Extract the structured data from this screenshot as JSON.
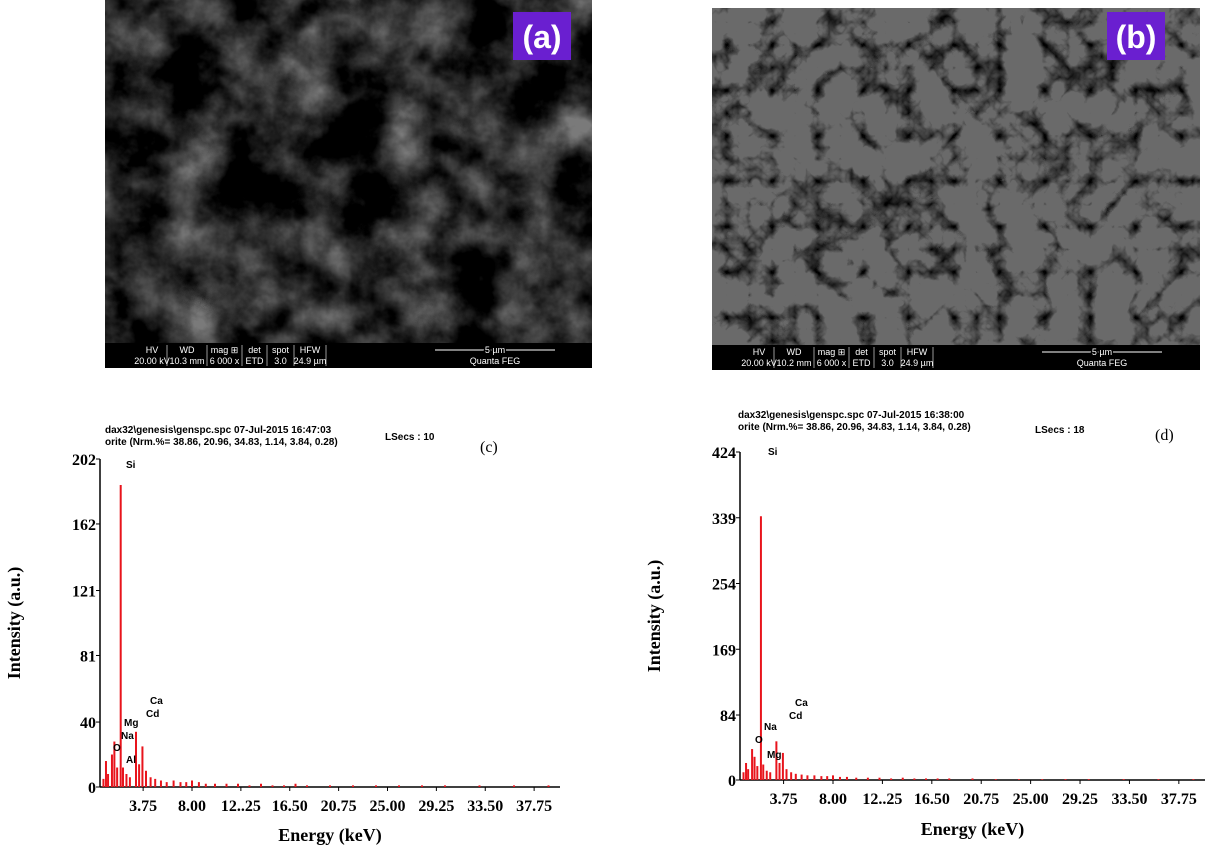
{
  "images": [
    {
      "label": "(a)",
      "info_headers": [
        "HV",
        "WD",
        "mag ⊞",
        "det",
        "spot",
        "HFW"
      ],
      "info_values": [
        "20.00 kV",
        "10.3 mm",
        "6 000 x",
        "ETD",
        "3.0",
        "24.9 µm"
      ],
      "scale": "5 µm",
      "instrument": "Quanta FEG"
    },
    {
      "label": "(b)",
      "info_headers": [
        "HV",
        "WD",
        "mag ⊞",
        "det",
        "spot",
        "HFW"
      ],
      "info_values": [
        "20.00 kV",
        "10.2 mm",
        "6 000 x",
        "ETD",
        "3.0",
        "24.9 µm"
      ],
      "scale": "5 µm",
      "instrument": "Quanta FEG"
    }
  ],
  "chart_data": [
    {
      "type": "spectrum",
      "label": "(c)",
      "header_lines": [
        "dax32\\genesis\\genspc.spc  07-Jul-2015 16:47:03",
        "orite (Nrm.%= 38.86, 20.96, 34.83, 1.14, 3.84, 0.28)"
      ],
      "live_time": "LSecs : 10",
      "x_label": "Energy (keV)",
      "y_label": "Intensity (a.u.)",
      "color": "#e8141c",
      "xlim": [
        0,
        40
      ],
      "ylim": [
        0,
        202
      ],
      "xticks": [
        3.75,
        {
          "value": 8,
          "label": "8.00"
        },
        {
          "value": 12.25,
          "label": "12..25"
        },
        {
          "value": 16.5,
          "label": "16.50"
        },
        20.75,
        {
          "value": 25,
          "label": "25.00"
        },
        29.25,
        {
          "value": 33.5,
          "label": "33.50"
        },
        37.75
      ],
      "yticks": [
        0,
        40,
        81,
        121,
        162,
        202
      ],
      "annotations": [
        "Si",
        "Ca",
        "Cd",
        "Mg",
        "Na",
        "O",
        "Al"
      ],
      "x": [
        0.3,
        0.52,
        0.7,
        1.04,
        1.25,
        1.49,
        1.8,
        2.0,
        2.3,
        2.6,
        3.13,
        3.4,
        3.69,
        4.0,
        4.4,
        4.8,
        5.3,
        5.8,
        6.4,
        7.0,
        7.5,
        8.0,
        8.6,
        9.2,
        10,
        11,
        12,
        13,
        14,
        15,
        16,
        17,
        18,
        20,
        22,
        24,
        26,
        28,
        30,
        33,
        36,
        39
      ],
      "values": [
        5,
        16,
        8,
        20,
        28,
        12,
        186,
        12,
        8,
        6,
        34,
        14,
        25,
        10,
        6,
        5,
        4,
        3,
        4,
        3,
        3,
        4,
        3,
        2,
        2,
        2,
        2,
        1,
        2,
        1,
        1,
        2,
        1,
        1,
        1,
        1,
        1,
        1,
        1,
        1,
        1,
        1
      ]
    },
    {
      "type": "spectrum",
      "label": "(d)",
      "header_lines": [
        "dax32\\genesis\\genspc.spc  07-Jul-2015 16:38:00",
        "orite (Nrm.%= 38.86, 20.96, 34.83, 1.14, 3.84, 0.28)"
      ],
      "live_time": "LSecs : 18",
      "x_label": "Energy (keV)",
      "y_label": "Intensity (a.u.)",
      "color": "#e8141c",
      "xlim": [
        0,
        40
      ],
      "ylim": [
        0,
        424
      ],
      "xticks": [
        3.75,
        {
          "value": 8,
          "label": "8.00"
        },
        {
          "value": 12.25,
          "label": "12..25"
        },
        {
          "value": 16.5,
          "label": "16.50"
        },
        20.75,
        {
          "value": 25,
          "label": "25.00"
        },
        29.25,
        {
          "value": 33.5,
          "label": "33.50"
        },
        37.75
      ],
      "yticks": [
        0,
        84,
        169,
        254,
        339,
        424
      ],
      "annotations": [
        "Si",
        "Ca",
        "Cd",
        "Na",
        "O",
        "Mg"
      ],
      "x": [
        0.3,
        0.52,
        0.7,
        1.04,
        1.25,
        1.49,
        1.8,
        2.0,
        2.3,
        2.6,
        3.13,
        3.4,
        3.69,
        4.0,
        4.4,
        4.8,
        5.3,
        5.8,
        6.4,
        7.0,
        7.5,
        8.0,
        8.6,
        9.2,
        10,
        11,
        12,
        13,
        14,
        15,
        16,
        17,
        18,
        20,
        22,
        24,
        26,
        28,
        30,
        33,
        36,
        39
      ],
      "values": [
        10,
        22,
        14,
        40,
        30,
        18,
        341,
        20,
        12,
        10,
        50,
        22,
        35,
        14,
        10,
        8,
        7,
        6,
        6,
        5,
        5,
        6,
        4,
        4,
        3,
        3,
        3,
        2,
        3,
        2,
        2,
        2,
        2,
        2,
        1,
        1,
        1,
        1,
        1,
        1,
        1,
        1
      ]
    }
  ]
}
